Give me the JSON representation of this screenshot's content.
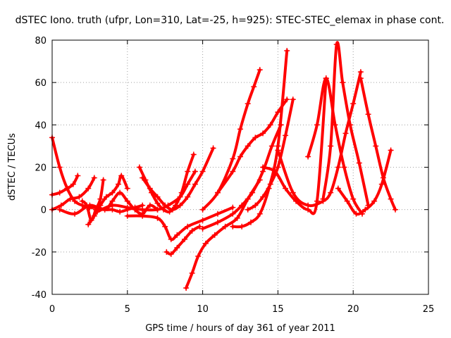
{
  "chart_data": {
    "type": "scatter",
    "title": "dSTEC Iono. truth (ufpr, Lon=310, Lat=-25, h=925): STEC-STEC_elemax in phase cont.",
    "xlabel": "GPS time / hours of day 361 of year 2011",
    "ylabel": "dSTEC  / TECUs",
    "xlim": [
      0,
      25
    ],
    "ylim": [
      -40,
      80
    ],
    "xticks": [
      0,
      5,
      10,
      15,
      20,
      25
    ],
    "yticks": [
      -40,
      -20,
      0,
      20,
      40,
      60,
      80
    ],
    "grid": true,
    "legend": "none",
    "marker": "+",
    "color": "#ff0000",
    "series": [
      {
        "x": [
          0.0,
          0.5,
          1.0,
          1.5,
          2.0,
          2.5,
          3.0,
          3.5,
          4.0,
          4.5,
          5.0,
          5.5,
          6.0
        ],
        "y": [
          34,
          20,
          10,
          4,
          2,
          1,
          1,
          0,
          0,
          -1,
          0,
          1,
          2
        ]
      },
      {
        "x": [
          0.0,
          0.5,
          1.0,
          1.4,
          1.7
        ],
        "y": [
          7,
          8,
          10,
          12,
          16
        ]
      },
      {
        "x": [
          0.0,
          0.6,
          1.2,
          1.8,
          2.4,
          2.8
        ],
        "y": [
          0,
          2,
          5,
          6,
          10,
          15
        ]
      },
      {
        "x": [
          2.0,
          2.3,
          2.6,
          2.9,
          3.2,
          3.4
        ],
        "y": [
          4,
          2,
          -5,
          0,
          5,
          14
        ]
      },
      {
        "x": [
          2.4,
          2.8,
          3.2,
          3.6,
          4.0,
          4.4,
          4.6,
          5.0
        ],
        "y": [
          -7,
          -3,
          2,
          6,
          8,
          12,
          16,
          10
        ]
      },
      {
        "x": [
          0.5,
          1.5,
          2.5,
          3.5,
          4.0,
          4.5,
          5.0,
          5.5,
          6.0,
          6.5,
          7.0
        ],
        "y": [
          0,
          -2,
          2,
          0,
          4,
          8,
          4,
          0,
          -2,
          2,
          0
        ]
      },
      {
        "x": [
          3.0,
          4.0,
          5.0,
          6.0,
          7.0,
          7.7,
          8.5,
          9.0,
          9.5
        ],
        "y": [
          -1,
          2,
          1,
          0,
          0,
          2,
          6,
          12,
          18
        ]
      },
      {
        "x": [
          5.8,
          6.2,
          6.6,
          7.0,
          7.4,
          7.8,
          8.2,
          8.6,
          9.0,
          9.4
        ],
        "y": [
          20,
          14,
          8,
          3,
          0,
          -1,
          2,
          8,
          18,
          26
        ]
      },
      {
        "x": [
          6.0,
          6.5,
          7.0,
          7.5,
          8.0,
          8.5,
          9.0,
          9.5,
          10.0,
          10.7
        ],
        "y": [
          15,
          10,
          6,
          2,
          0,
          2,
          6,
          12,
          18,
          29
        ]
      },
      {
        "x": [
          5.0,
          6.0,
          7.0,
          7.5,
          7.9,
          8.3,
          9.0,
          10.0,
          11.0,
          12.0
        ],
        "y": [
          -3,
          -3,
          -4,
          -8,
          -14,
          -12,
          -8,
          -5,
          -2,
          1
        ]
      },
      {
        "x": [
          7.6,
          7.9,
          8.3,
          8.8,
          9.3,
          9.8
        ],
        "y": [
          -20,
          -21,
          -18,
          -14,
          -10,
          -8
        ]
      },
      {
        "x": [
          8.9,
          9.3,
          9.7,
          10.2,
          10.8,
          11.5,
          12.3,
          13.0,
          13.8
        ],
        "y": [
          -37,
          -30,
          -22,
          -16,
          -12,
          -8,
          -4,
          5,
          14
        ]
      },
      {
        "x": [
          10.0,
          11.0,
          12.0,
          12.6,
          13.3,
          14.0,
          14.6,
          15.2
        ],
        "y": [
          -9,
          -6,
          -2,
          2,
          8,
          18,
          30,
          40
        ]
      },
      {
        "x": [
          10.0,
          11.0,
          12.0,
          12.5,
          13.0,
          13.4,
          13.8
        ],
        "y": [
          0,
          8,
          24,
          38,
          50,
          58,
          66
        ]
      },
      {
        "x": [
          11.0,
          12.0,
          12.5,
          13.0,
          13.5,
          14.0,
          14.5,
          15.0,
          15.6
        ],
        "y": [
          8,
          18,
          25,
          30,
          34,
          36,
          40,
          46,
          52
        ]
      },
      {
        "x": [
          12.0,
          12.6,
          13.2,
          13.8,
          14.4,
          15.0,
          15.6
        ],
        "y": [
          -8,
          -8,
          -6,
          -2,
          10,
          30,
          75
        ]
      },
      {
        "x": [
          13.0,
          13.5,
          14.0,
          14.5,
          15.0,
          15.5,
          16.0
        ],
        "y": [
          0,
          2,
          6,
          12,
          20,
          35,
          52
        ]
      },
      {
        "x": [
          14.0,
          14.8,
          15.5,
          16.2,
          17.0,
          17.6,
          18.2
        ],
        "y": [
          20,
          18,
          10,
          4,
          0,
          4,
          62
        ]
      },
      {
        "x": [
          15.0,
          16.0,
          17.0,
          18.0,
          18.5,
          19.0,
          19.5,
          20.0,
          20.5
        ],
        "y": [
          28,
          8,
          2,
          4,
          8,
          20,
          36,
          50,
          65
        ]
      },
      {
        "x": [
          17.0,
          17.6,
          18.2,
          18.8,
          19.4,
          20.0,
          20.6
        ],
        "y": [
          25,
          40,
          62,
          40,
          20,
          5,
          -2
        ]
      },
      {
        "x": [
          18.0,
          18.5,
          18.9,
          19.3,
          19.8,
          20.4,
          21.0
        ],
        "y": [
          5,
          30,
          78,
          60,
          40,
          22,
          2
        ]
      },
      {
        "x": [
          19.0,
          19.6,
          20.2,
          20.8,
          21.4,
          21.9,
          22.5
        ],
        "y": [
          10,
          4,
          -2,
          0,
          4,
          12,
          28
        ]
      },
      {
        "x": [
          20.5,
          21.0,
          21.5,
          22.0,
          22.5,
          22.8
        ],
        "y": [
          62,
          45,
          30,
          15,
          5,
          0
        ]
      }
    ]
  }
}
